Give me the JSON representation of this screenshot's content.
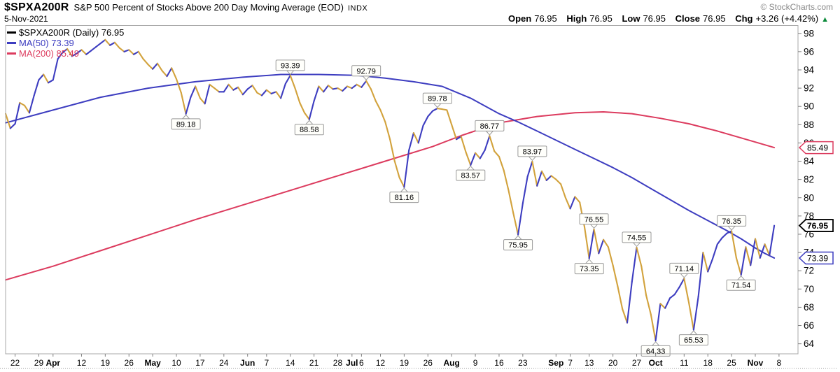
{
  "header": {
    "symbol": "$SPXA200R",
    "title": "S&P 500 Percent of Stocks Above 200 Day Moving Average (EOD)",
    "exchange": "INDX",
    "copyright": "© StockCharts.com",
    "date": "5-Nov-2021",
    "ohlc": [
      {
        "label": "Open",
        "value": "76.95"
      },
      {
        "label": "High",
        "value": "76.95"
      },
      {
        "label": "Low",
        "value": "76.95"
      },
      {
        "label": "Close",
        "value": "76.95"
      },
      {
        "label": "Chg",
        "value": "+3.26 (+4.42%)"
      }
    ],
    "change_direction_icon": "▲"
  },
  "legend": [
    {
      "label": "$SPXA200R (Daily) 76.95",
      "color": "#000000"
    },
    {
      "label": "MA(50) 73.39",
      "color": "#3d3dc0"
    },
    {
      "label": "MA(200) 85.49",
      "color": "#dc3b5e"
    }
  ],
  "chart_data": {
    "type": "line",
    "title": "S&P 500 Percent of Stocks Above 200 Day Moving Average (EOD)",
    "symbol": "$SPXA200R",
    "last_close": 76.95,
    "prev_close": 73.69,
    "change": "+3.26 (+4.42%)",
    "ylim": [
      62.9,
      98.9
    ],
    "y_ticks": [
      98,
      96,
      94,
      92,
      90,
      88,
      86,
      84,
      82,
      80,
      78,
      76,
      74,
      72,
      70,
      68,
      66,
      64
    ],
    "x_slots": 167,
    "x_ticks": [
      {
        "label": "22",
        "i": 2
      },
      {
        "label": "29",
        "i": 7
      },
      {
        "label": "Apr",
        "i": 10,
        "bold": true
      },
      {
        "label": "12",
        "i": 16
      },
      {
        "label": "19",
        "i": 21
      },
      {
        "label": "26",
        "i": 26
      },
      {
        "label": "May",
        "i": 31,
        "bold": true
      },
      {
        "label": "10",
        "i": 36
      },
      {
        "label": "17",
        "i": 41
      },
      {
        "label": "24",
        "i": 46
      },
      {
        "label": "Jun",
        "i": 51,
        "bold": true
      },
      {
        "label": "7",
        "i": 55
      },
      {
        "label": "14",
        "i": 60
      },
      {
        "label": "21",
        "i": 65
      },
      {
        "label": "28",
        "i": 70
      },
      {
        "label": "Jul",
        "i": 73,
        "bold": true
      },
      {
        "label": "6",
        "i": 75
      },
      {
        "label": "12",
        "i": 79
      },
      {
        "label": "19",
        "i": 84
      },
      {
        "label": "26",
        "i": 89
      },
      {
        "label": "Aug",
        "i": 94,
        "bold": true
      },
      {
        "label": "9",
        "i": 99
      },
      {
        "label": "16",
        "i": 104
      },
      {
        "label": "23",
        "i": 109
      },
      {
        "label": "Sep",
        "i": 116,
        "bold": true
      },
      {
        "label": "7",
        "i": 119
      },
      {
        "label": "13",
        "i": 123
      },
      {
        "label": "20",
        "i": 128
      },
      {
        "label": "27",
        "i": 133
      },
      {
        "label": "Oct",
        "i": 137,
        "bold": true
      },
      {
        "label": "11",
        "i": 143
      },
      {
        "label": "18",
        "i": 148
      },
      {
        "label": "25",
        "i": 153
      },
      {
        "label": "Nov",
        "i": 158,
        "bold": true
      },
      {
        "label": "8",
        "i": 163
      }
    ],
    "price_values": [
      89.2,
      87.6,
      88.1,
      90.4,
      90.1,
      89.3,
      91.2,
      92.9,
      93.5,
      92.6,
      92.9,
      95.2,
      95.9,
      96.3,
      95.5,
      95.8,
      96.2,
      95.7,
      96.1,
      96.5,
      96.9,
      97.3,
      96.7,
      97.0,
      96.4,
      96.0,
      96.2,
      95.7,
      96.0,
      95.2,
      94.6,
      94.1,
      94.7,
      93.9,
      93.3,
      94.2,
      93.0,
      91.5,
      89.18,
      91.0,
      92.2,
      90.9,
      90.3,
      92.4,
      92.0,
      91.6,
      91.6,
      92.4,
      91.8,
      92.1,
      91.3,
      91.9,
      92.3,
      91.5,
      91.2,
      91.8,
      91.4,
      91.6,
      90.9,
      92.5,
      93.39,
      92.0,
      90.4,
      89.3,
      88.58,
      90.6,
      92.2,
      91.6,
      92.3,
      91.9,
      92.0,
      91.7,
      92.2,
      92.0,
      92.4,
      92.1,
      92.79,
      91.9,
      90.6,
      89.6,
      88.3,
      86.4,
      84.0,
      82.2,
      81.16,
      85.2,
      87.1,
      86.0,
      87.9,
      88.9,
      89.5,
      89.78,
      89.7,
      89.6,
      88.0,
      86.4,
      86.7,
      85.0,
      83.57,
      84.9,
      84.3,
      85.2,
      86.77,
      85.1,
      84.5,
      83.0,
      80.8,
      78.3,
      75.95,
      79.4,
      82.3,
      83.97,
      81.3,
      82.9,
      81.9,
      82.4,
      82.0,
      81.5,
      80.0,
      78.8,
      80.1,
      79.5,
      76.8,
      73.35,
      76.55,
      73.9,
      75.4,
      74.6,
      72.6,
      70.3,
      67.8,
      66.3,
      70.8,
      74.55,
      72.5,
      69.3,
      67.2,
      64.33,
      68.4,
      67.9,
      69.0,
      69.4,
      70.2,
      71.14,
      68.5,
      65.53,
      69.2,
      74.0,
      71.9,
      73.3,
      74.9,
      75.6,
      76.1,
      76.35,
      73.4,
      71.54,
      74.6,
      72.6,
      75.5,
      73.4,
      74.9,
      73.69,
      76.95
    ],
    "ma50_points": [
      [
        0,
        88.2
      ],
      [
        10,
        89.6
      ],
      [
        20,
        91.0
      ],
      [
        30,
        92.0
      ],
      [
        40,
        92.7
      ],
      [
        50,
        93.2
      ],
      [
        58,
        93.5
      ],
      [
        66,
        93.5
      ],
      [
        74,
        93.4
      ],
      [
        80,
        93.1
      ],
      [
        86,
        92.7
      ],
      [
        92,
        92.2
      ],
      [
        98,
        90.9
      ],
      [
        104,
        89.2
      ],
      [
        108,
        88.3
      ],
      [
        112,
        87.3
      ],
      [
        116,
        86.3
      ],
      [
        120,
        85.3
      ],
      [
        124,
        84.3
      ],
      [
        128,
        83.3
      ],
      [
        132,
        82.2
      ],
      [
        136,
        81.0
      ],
      [
        140,
        79.8
      ],
      [
        144,
        78.6
      ],
      [
        148,
        77.5
      ],
      [
        152,
        76.4
      ],
      [
        155,
        75.5
      ],
      [
        158,
        74.5
      ],
      [
        160,
        73.9
      ],
      [
        162,
        73.39
      ]
    ],
    "ma200_points": [
      [
        0,
        71.0
      ],
      [
        10,
        72.5
      ],
      [
        20,
        74.2
      ],
      [
        30,
        75.9
      ],
      [
        40,
        77.6
      ],
      [
        50,
        79.2
      ],
      [
        60,
        80.8
      ],
      [
        70,
        82.4
      ],
      [
        80,
        84.0
      ],
      [
        90,
        85.6
      ],
      [
        96,
        86.8
      ],
      [
        104,
        88.2
      ],
      [
        112,
        88.9
      ],
      [
        120,
        89.3
      ],
      [
        126,
        89.4
      ],
      [
        132,
        89.2
      ],
      [
        138,
        88.7
      ],
      [
        144,
        88.1
      ],
      [
        150,
        87.3
      ],
      [
        156,
        86.4
      ],
      [
        162,
        85.49
      ]
    ],
    "annotations": [
      {
        "i": 38,
        "value": "89.18",
        "side": "below"
      },
      {
        "i": 60,
        "value": "93.39",
        "side": "above"
      },
      {
        "i": 64,
        "value": "88.58",
        "side": "below"
      },
      {
        "i": 76,
        "value": "92.79",
        "side": "above"
      },
      {
        "i": 84,
        "value": "81.16",
        "side": "below"
      },
      {
        "i": 91,
        "value": "89.78",
        "side": "above"
      },
      {
        "i": 98,
        "value": "83.57",
        "side": "below"
      },
      {
        "i": 102,
        "value": "86.77",
        "side": "above"
      },
      {
        "i": 108,
        "value": "75.95",
        "side": "below"
      },
      {
        "i": 111,
        "value": "83.97",
        "side": "above"
      },
      {
        "i": 123,
        "value": "73.35",
        "side": "below"
      },
      {
        "i": 124,
        "value": "76.55",
        "side": "above"
      },
      {
        "i": 133,
        "value": "74.55",
        "side": "above"
      },
      {
        "i": 137,
        "value": "64.33",
        "side": "below"
      },
      {
        "i": 143,
        "value": "71.14",
        "side": "above"
      },
      {
        "i": 145,
        "value": "65.53",
        "side": "below"
      },
      {
        "i": 153,
        "value": "76.35",
        "side": "above"
      },
      {
        "i": 155,
        "value": "71.54",
        "side": "below"
      }
    ],
    "axis_tags": [
      {
        "value": 85.49,
        "label": "85.49",
        "color": "#dc3b5e",
        "bold": false
      },
      {
        "value": 76.95,
        "label": "76.95",
        "color": "#000000",
        "bold": true
      },
      {
        "value": 73.39,
        "label": "73.39",
        "color": "#3d3dc0",
        "bold": false
      }
    ],
    "colors": {
      "up": "#3d3dc0",
      "down": "#d2a23c",
      "ma50": "#3d3dc0",
      "ma200": "#dc3b5e",
      "frame": "#a8a8a8",
      "tick": "#808080",
      "annotation_border": "#9a9a9a",
      "annotation_fill": "#fffffb",
      "change_up": "#0b8a3a"
    },
    "legend_position": "top-left",
    "grid": false
  }
}
